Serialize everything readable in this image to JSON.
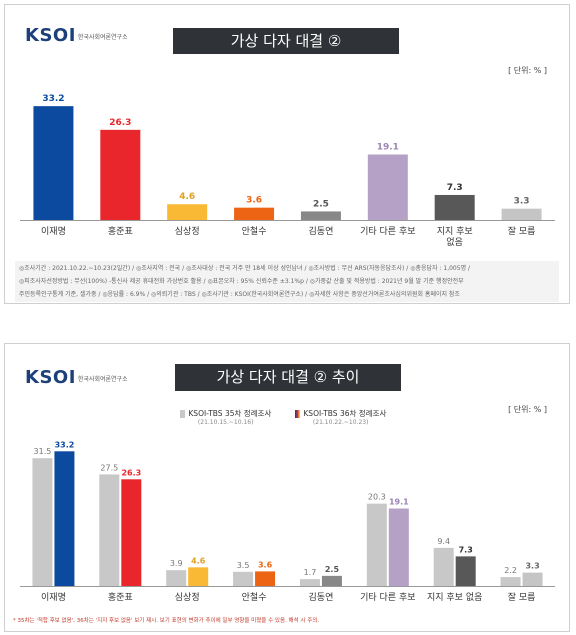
{
  "logo": {
    "text": "KSOI",
    "sub": "한국사회여론연구소"
  },
  "chart1": {
    "title": "가상 다자 대결 ②",
    "unit": "[ 단위: % ]",
    "notes": [
      "◎조사기간 : 2021.10.22.~10.23(2일간) / ◎조사지역 : 전국 / ◎조사대상 : 전국 거주 만 18세 이상 성인남녀 / ◎조사방법 : 무선 ARS(자동응답조사) / ◎총응답자 : 1,005명 /",
      "◎피조사자선정방법 : 무선(100%) -통신사 제공 휴대전화 가상번호 활용 / ◎표본오차 : 95% 신뢰수준 ±3.1%p / ◎가중값 산출 및 적용방법 : 2021년 9월 말 기준 행정안전부",
      "주민등록인구통계 기준, 셀가중 / ◎응답률 : 6.9% / ◎의뢰기관 : TBS / ◎조사기관 : KSOI(한국사회여론연구소) / ◎자세한 사항은 중앙선거여론조사심의위원회 홈페이지 참조"
    ]
  },
  "chart2": {
    "title": "가상 다자 대결 ② 추이",
    "unit": "[ 단위: % ]",
    "legend": [
      {
        "label": "KSOI-TBS 35차 정례조사",
        "date": "(21.10.15.~10.16)"
      },
      {
        "label": "KSOI-TBS 36차 정례조사",
        "date": "(21.10.22.~10.23)"
      }
    ],
    "footnote": "* 35차는 '적합 후보 없음', 36차는 '지지 후보 없음' 보기 제시. 보기 표현의 변화가 추이에 일부 영향을 미쳤을 수 있음. 해석 시 주의."
  },
  "colors": {
    "lee": "#0b4a9e",
    "hong": "#e8262b",
    "sim": "#f9b935",
    "ahn": "#ec6414",
    "kim": "#888888",
    "other": "#b5a1c6",
    "none": "#585858",
    "dk": "#c5c5c5",
    "prev": "#c8c8c8"
  },
  "chart_data": [
    {
      "type": "bar",
      "title": "가상 다자 대결 ②",
      "categories": [
        "이재명",
        "홍준표",
        "심상정",
        "안철수",
        "김동연",
        "기타 다른 후보",
        "지지 후보 없음",
        "잘 모름"
      ],
      "values": [
        33.2,
        26.3,
        4.6,
        3.6,
        2.5,
        19.1,
        7.3,
        3.3
      ],
      "ylim": [
        0,
        35
      ],
      "grid": false,
      "unit": "%"
    },
    {
      "type": "bar",
      "title": "가상 다자 대결 ② 추이",
      "categories": [
        "이재명",
        "홍준표",
        "심상정",
        "안철수",
        "김동연",
        "기타 다른 후보",
        "지지 후보 없음",
        "잘 모름"
      ],
      "series": [
        {
          "name": "KSOI-TBS 35차 정례조사",
          "values": [
            31.5,
            27.5,
            3.9,
            3.5,
            1.7,
            20.3,
            9.4,
            2.2
          ]
        },
        {
          "name": "KSOI-TBS 36차 정례조사",
          "values": [
            33.2,
            26.3,
            4.6,
            3.6,
            2.5,
            19.1,
            7.3,
            3.3
          ]
        }
      ],
      "ylim": [
        0,
        35
      ],
      "grid": false,
      "legend": "top-center",
      "unit": "%"
    }
  ]
}
